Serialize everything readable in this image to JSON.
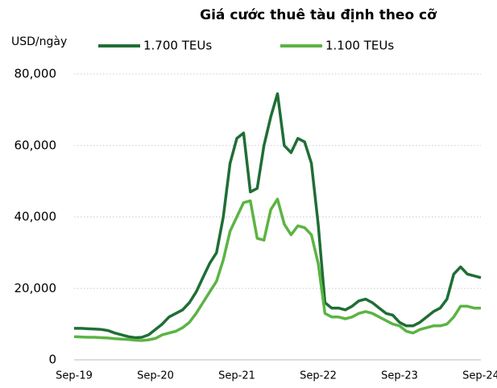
{
  "chart_data": {
    "type": "line",
    "title": "Giá cước thuê tàu định theo cỡ",
    "y_label": "USD/ngày",
    "categories": [
      "Sep-19",
      null,
      null,
      null,
      null,
      null,
      null,
      null,
      null,
      null,
      null,
      null,
      "Sep-20",
      null,
      null,
      null,
      null,
      null,
      null,
      null,
      null,
      null,
      null,
      null,
      "Sep-21",
      null,
      null,
      null,
      null,
      null,
      null,
      null,
      null,
      null,
      null,
      null,
      "Sep-22",
      null,
      null,
      null,
      null,
      null,
      null,
      null,
      null,
      null,
      null,
      null,
      "Sep-23",
      null,
      null,
      null,
      null,
      null,
      null,
      null,
      null,
      null,
      null,
      null,
      "Sep-24"
    ],
    "series": [
      {
        "name": "1.700 TEUs",
        "color": "#1f6e35",
        "values": [
          8800,
          8800,
          8700,
          8600,
          8500,
          8200,
          7500,
          7000,
          6500,
          6200,
          6300,
          7000,
          8500,
          10000,
          12000,
          13000,
          14000,
          16000,
          19000,
          23000,
          27000,
          30000,
          40000,
          55000,
          62000,
          63500,
          47000,
          48000,
          60000,
          68000,
          74500,
          60000,
          58000,
          62000,
          61000,
          55000,
          38000,
          16000,
          14500,
          14500,
          14000,
          15000,
          16500,
          17000,
          16000,
          14500,
          13000,
          12500,
          10500,
          9500,
          9500,
          10500,
          12000,
          13500,
          14500,
          17000,
          24000,
          26000,
          24000,
          23500,
          23000
        ]
      },
      {
        "name": "1.100 TEUs",
        "color": "#5bb443",
        "values": [
          6500,
          6400,
          6300,
          6300,
          6200,
          6100,
          5900,
          5800,
          5700,
          5500,
          5400,
          5600,
          6000,
          7000,
          7500,
          8000,
          9000,
          10500,
          13000,
          16000,
          19000,
          22000,
          28000,
          36000,
          40000,
          44000,
          44500,
          34000,
          33500,
          42000,
          45000,
          38000,
          35000,
          37500,
          37000,
          35000,
          27000,
          13000,
          12000,
          12000,
          11500,
          12000,
          13000,
          13500,
          13000,
          12000,
          11000,
          10000,
          9500,
          8000,
          7500,
          8500,
          9000,
          9500,
          9500,
          10000,
          12000,
          15000,
          15000,
          14500,
          14500
        ]
      }
    ],
    "ylim": [
      0,
      80000
    ],
    "yticks": [
      0,
      {
        "value": 20000,
        "label": "20,000"
      },
      {
        "value": 40000,
        "label": "40,000"
      },
      {
        "value": 60000,
        "label": "60,000"
      },
      {
        "value": 80000,
        "label": "80,000"
      }
    ],
    "grid": true
  }
}
